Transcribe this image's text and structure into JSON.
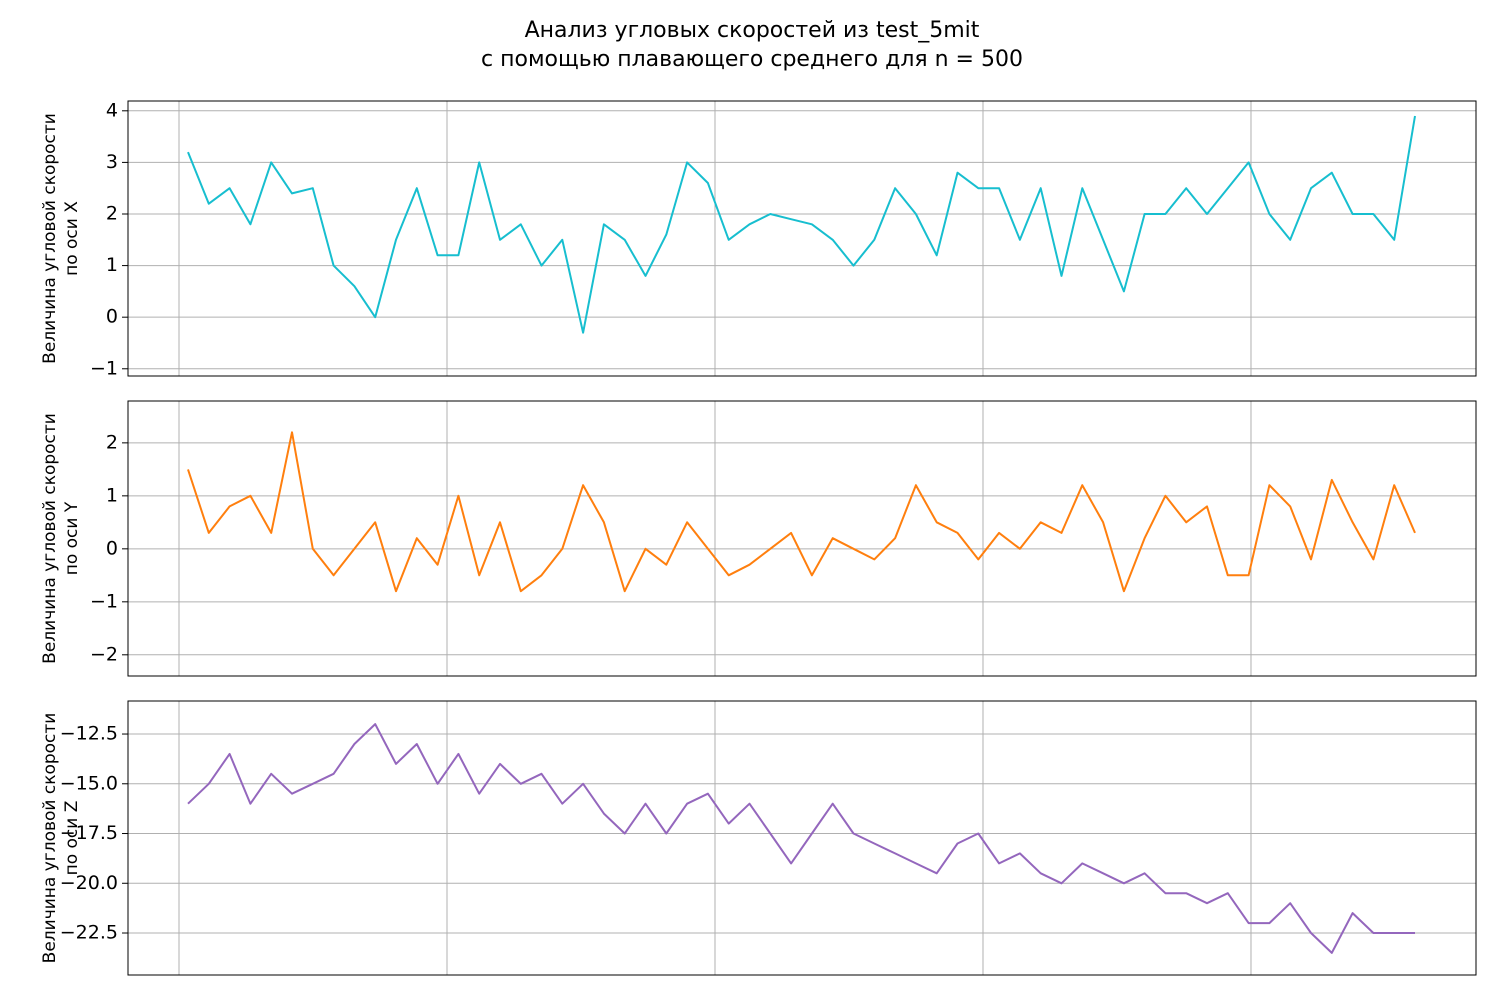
{
  "title": [
    "Анализ угловых скоростей из test_5mit",
    "с помощью плавающего среднего для n = 500"
  ],
  "chart_data": [
    {
      "type": "line",
      "color": "#17becf",
      "grid": true,
      "ylabel": [
        "Величина угловой скорости",
        "по оси X"
      ],
      "xlim": [
        -1903,
        48396
      ],
      "xticks": [
        0,
        10000,
        20000,
        30000,
        40000
      ],
      "ylim": [
        -1.14,
        4.19
      ],
      "yticks": [
        {
          "value": -1,
          "label": "−1"
        },
        0,
        1,
        2,
        3,
        4
      ],
      "x": [
        336,
        1112,
        1888,
        2664,
        3440,
        4216,
        4992,
        5768,
        6544,
        7320,
        8096,
        8872,
        9648,
        10424,
        11200,
        11976,
        12752,
        13528,
        14304,
        15080,
        15856,
        16632,
        17408,
        18184,
        18960,
        19736,
        20512,
        21288,
        22064,
        22840,
        23616,
        24392,
        25168,
        25944,
        26720,
        27496,
        28272,
        29048,
        29824,
        30600,
        31376,
        32152,
        32928,
        33704,
        34480,
        35256,
        36032,
        36808,
        37584,
        38360,
        39136,
        39912,
        40688,
        41464,
        42240,
        43016,
        43792,
        44568,
        45344,
        46120
      ],
      "values": [
        3.2,
        2.2,
        2.5,
        1.8,
        3.0,
        2.4,
        2.5,
        1.0,
        0.6,
        0.0,
        1.5,
        2.5,
        1.2,
        1.2,
        3.0,
        1.5,
        1.8,
        1.0,
        1.5,
        -0.3,
        1.8,
        1.5,
        0.8,
        1.6,
        3.0,
        2.6,
        1.5,
        1.8,
        2.0,
        1.9,
        1.8,
        1.5,
        1.0,
        1.5,
        2.5,
        2.0,
        1.2,
        2.8,
        2.5,
        2.5,
        1.5,
        2.5,
        0.8,
        2.5,
        1.5,
        0.5,
        2.0,
        2.0,
        2.5,
        2.0,
        2.5,
        3.0,
        2.0,
        1.5,
        2.5,
        2.8,
        2.0,
        2.0,
        1.5,
        3.9
      ]
    },
    {
      "type": "line",
      "color": "#ff7f0e",
      "grid": true,
      "ylabel": [
        "Величина угловой скорости",
        "по оси Y"
      ],
      "xlim": [
        -1903,
        48396
      ],
      "xticks": [
        0,
        10000,
        20000,
        30000,
        40000
      ],
      "ylim": [
        -2.4,
        2.79
      ],
      "yticks": [
        {
          "value": -2,
          "label": "−2"
        },
        {
          "value": -1,
          "label": "−1"
        },
        0,
        1,
        2
      ],
      "x": [
        336,
        1112,
        1888,
        2664,
        3440,
        4216,
        4992,
        5768,
        6544,
        7320,
        8096,
        8872,
        9648,
        10424,
        11200,
        11976,
        12752,
        13528,
        14304,
        15080,
        15856,
        16632,
        17408,
        18184,
        18960,
        19736,
        20512,
        21288,
        22064,
        22840,
        23616,
        24392,
        25168,
        25944,
        26720,
        27496,
        28272,
        29048,
        29824,
        30600,
        31376,
        32152,
        32928,
        33704,
        34480,
        35256,
        36032,
        36808,
        37584,
        38360,
        39136,
        39912,
        40688,
        41464,
        42240,
        43016,
        43792,
        44568,
        45344,
        46120
      ],
      "values": [
        1.5,
        0.3,
        0.8,
        1.0,
        0.3,
        2.2,
        0.0,
        -0.5,
        0.0,
        0.5,
        -0.8,
        0.2,
        -0.3,
        1.0,
        -0.5,
        0.5,
        -0.8,
        -0.5,
        0.0,
        1.2,
        0.5,
        -0.8,
        0.0,
        -0.3,
        0.5,
        0.0,
        -0.5,
        -0.3,
        0.0,
        0.3,
        -0.5,
        0.2,
        0.0,
        -0.2,
        0.2,
        1.2,
        0.5,
        0.3,
        -0.2,
        0.3,
        0.0,
        0.5,
        0.3,
        1.2,
        0.5,
        -0.8,
        0.2,
        1.0,
        0.5,
        0.8,
        -0.5,
        -0.5,
        1.2,
        0.8,
        -0.2,
        1.3,
        0.5,
        -0.2,
        1.2,
        0.3
      ]
    },
    {
      "type": "line",
      "color": "#9467bd",
      "grid": true,
      "ylabel": [
        "Величина угловой скорости",
        "по оси Z"
      ],
      "xlim": [
        -1903,
        48396
      ],
      "xticks": [
        0,
        10000,
        20000,
        30000,
        40000
      ],
      "ylim": [
        -24.61,
        -10.84
      ],
      "yticks": [
        {
          "value": -22.5,
          "label": "−22.5"
        },
        {
          "value": -20,
          "label": "−20.0"
        },
        {
          "value": -17.5,
          "label": "−17.5"
        },
        {
          "value": -15,
          "label": "−15.0"
        },
        {
          "value": -12.5,
          "label": "−12.5"
        }
      ],
      "x": [
        336,
        1112,
        1888,
        2664,
        3440,
        4216,
        4992,
        5768,
        6544,
        7320,
        8096,
        8872,
        9648,
        10424,
        11200,
        11976,
        12752,
        13528,
        14304,
        15080,
        15856,
        16632,
        17408,
        18184,
        18960,
        19736,
        20512,
        21288,
        22064,
        22840,
        23616,
        24392,
        25168,
        25944,
        26720,
        27496,
        28272,
        29048,
        29824,
        30600,
        31376,
        32152,
        32928,
        33704,
        34480,
        35256,
        36032,
        36808,
        37584,
        38360,
        39136,
        39912,
        40688,
        41464,
        42240,
        43016,
        43792,
        44568,
        45344,
        46120
      ],
      "values": [
        -16,
        -15,
        -13.5,
        -16,
        -14.5,
        -15.5,
        -15,
        -14.5,
        -13,
        -12,
        -14,
        -13,
        -15,
        -13.5,
        -15.5,
        -14,
        -15,
        -14.5,
        -16,
        -15,
        -16.5,
        -17.5,
        -16,
        -17.5,
        -16,
        -15.5,
        -17,
        -16,
        -17.5,
        -19,
        -17.5,
        -16,
        -17.5,
        -18,
        -18.5,
        -19,
        -19.5,
        -18,
        -17.5,
        -19,
        -18.5,
        -19.5,
        -20,
        -19,
        -19.5,
        -20,
        -19.5,
        -20.5,
        -20.5,
        -21,
        -20.5,
        -22,
        -22,
        -21,
        -22.5,
        -23.5,
        -21.5,
        -22.5,
        -22.5,
        -22.5
      ]
    }
  ]
}
